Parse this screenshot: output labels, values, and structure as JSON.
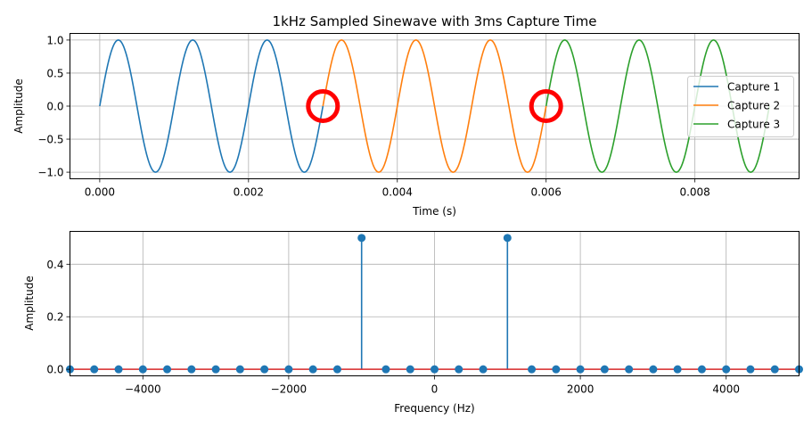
{
  "chart_data": [
    {
      "type": "line",
      "title": "1kHz Sampled Sinewave with 3ms Capture Time",
      "xlabel": "Time (s)",
      "ylabel": "Amplitude",
      "xlim": [
        -0.0004,
        0.0094
      ],
      "ylim": [
        -1.1,
        1.1
      ],
      "grid": true,
      "legend_position": "center-right",
      "x_ticks": [
        0.0,
        0.002,
        0.004,
        0.006,
        0.008
      ],
      "x_tick_labels": [
        "0.000",
        "0.002",
        "0.004",
        "0.006",
        "0.008"
      ],
      "y_ticks": [
        1.0,
        0.5,
        0.0,
        -0.5,
        -1.0
      ],
      "y_tick_labels": [
        "1.0",
        "0.5",
        "0.0",
        "−0.5",
        "−1.0"
      ],
      "signal": {
        "function": "sin",
        "frequency_hz": 1000,
        "amplitude": 1.0
      },
      "series": [
        {
          "name": "Capture 1",
          "t_start": 0.0,
          "t_end": 0.003,
          "color": "#1f77b4"
        },
        {
          "name": "Capture 2",
          "t_start": 0.003,
          "t_end": 0.006,
          "color": "#ff7f0e"
        },
        {
          "name": "Capture 3",
          "t_start": 0.006,
          "t_end": 0.009,
          "color": "#2ca02c"
        }
      ],
      "annotations": [
        {
          "type": "circle-marker",
          "x": 0.003,
          "y": 0.0,
          "color": "#ff0000"
        },
        {
          "type": "circle-marker",
          "x": 0.006,
          "y": 0.0,
          "color": "#ff0000"
        }
      ]
    },
    {
      "type": "stem",
      "title": "",
      "xlabel": "Frequency (Hz)",
      "ylabel": "Amplitude",
      "xlim": [
        -5000,
        5000
      ],
      "ylim": [
        -0.025,
        0.525
      ],
      "grid": true,
      "x_ticks": [
        -4000,
        -2000,
        0,
        2000,
        4000
      ],
      "x_tick_labels": [
        "−4000",
        "−2000",
        "0",
        "2000",
        "4000"
      ],
      "y_ticks": [
        0.0,
        0.2,
        0.4
      ],
      "y_tick_labels": [
        "0.0",
        "0.2",
        "0.4"
      ],
      "stem_color": "#1f77b4",
      "baseline_color": "#d62728",
      "x": [
        -5000,
        -4667,
        -4333,
        -4000,
        -3667,
        -3333,
        -3000,
        -2667,
        -2333,
        -2000,
        -1667,
        -1333,
        -1000,
        -667,
        -333,
        0,
        333,
        667,
        1000,
        1333,
        1667,
        2000,
        2333,
        2667,
        3000,
        3333,
        3667,
        4000,
        4333,
        4667,
        5000
      ],
      "values": [
        0,
        0,
        0,
        0,
        0,
        0,
        0,
        0,
        0,
        0,
        0,
        0,
        0.5,
        0,
        0,
        0,
        0,
        0,
        0.5,
        0,
        0,
        0,
        0,
        0,
        0,
        0,
        0,
        0,
        0,
        0,
        0
      ]
    }
  ]
}
